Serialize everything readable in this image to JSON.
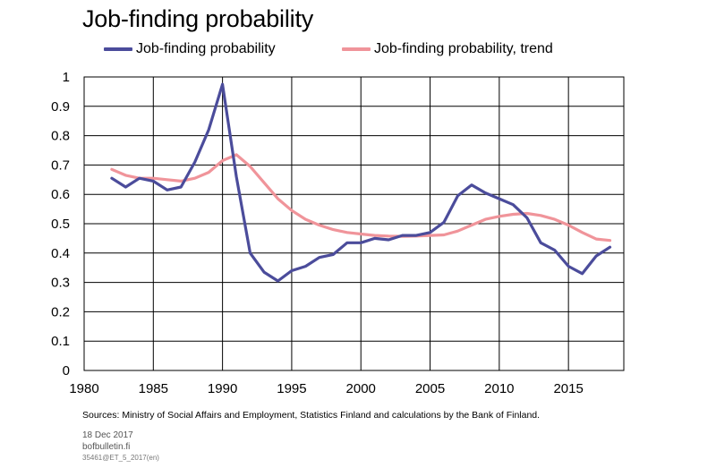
{
  "title": "Job-finding probability",
  "sources": "Sources: Ministry of Social Affairs and Employment,  Statistics Finland  and calculations  by the Bank of Finland.",
  "footer": {
    "date": "18 Dec 2017",
    "site": "bofbulletin.fi",
    "code": "35461@ET_5_2017(en)"
  },
  "colors": {
    "series1": "#4b4c9b",
    "series2": "#f0949a",
    "grid": "#000000"
  },
  "chart_data": {
    "type": "line",
    "title": "Job-finding probability",
    "xlabel": "",
    "ylabel": "",
    "xlim": [
      1980,
      2019
    ],
    "ylim": [
      0,
      1
    ],
    "xticks": [
      1980,
      1985,
      1990,
      1995,
      2000,
      2005,
      2010,
      2015
    ],
    "yticks": [
      0,
      0.1,
      0.2,
      0.3,
      0.4,
      0.5,
      0.6,
      0.7,
      0.8,
      0.9,
      1
    ],
    "ytick_labels": [
      "0",
      "0.1",
      "0.2",
      "0.3",
      "0.4",
      "0.5",
      "0.6",
      "0.7",
      "0.8",
      "0.9",
      "1"
    ],
    "grid": true,
    "legend_position": "top",
    "x": [
      1982,
      1983,
      1984,
      1985,
      1986,
      1987,
      1988,
      1989,
      1990,
      1991,
      1992,
      1993,
      1994,
      1995,
      1996,
      1997,
      1998,
      1999,
      2000,
      2001,
      2002,
      2003,
      2004,
      2005,
      2006,
      2007,
      2008,
      2009,
      2010,
      2011,
      2012,
      2013,
      2014,
      2015,
      2016,
      2017,
      2018
    ],
    "series": [
      {
        "name": "Job-finding probability",
        "color": "#4b4c9b",
        "values": [
          0.655,
          0.625,
          0.655,
          0.645,
          0.615,
          0.625,
          0.71,
          0.82,
          0.975,
          0.66,
          0.4,
          0.335,
          0.305,
          0.34,
          0.355,
          0.385,
          0.395,
          0.435,
          0.435,
          0.45,
          0.445,
          0.46,
          0.46,
          0.47,
          0.505,
          0.595,
          0.632,
          0.605,
          0.585,
          0.565,
          0.52,
          0.435,
          0.41,
          0.355,
          0.33,
          0.39,
          0.42
        ]
      },
      {
        "name": "Job-finding probability, trend",
        "color": "#f0949a",
        "values": [
          0.685,
          0.665,
          0.655,
          0.655,
          0.65,
          0.645,
          0.655,
          0.675,
          0.715,
          0.735,
          0.695,
          0.64,
          0.585,
          0.545,
          0.515,
          0.495,
          0.48,
          0.47,
          0.465,
          0.46,
          0.458,
          0.457,
          0.458,
          0.46,
          0.462,
          0.475,
          0.495,
          0.515,
          0.525,
          0.532,
          0.535,
          0.528,
          0.515,
          0.495,
          0.47,
          0.448,
          0.443
        ]
      }
    ]
  }
}
